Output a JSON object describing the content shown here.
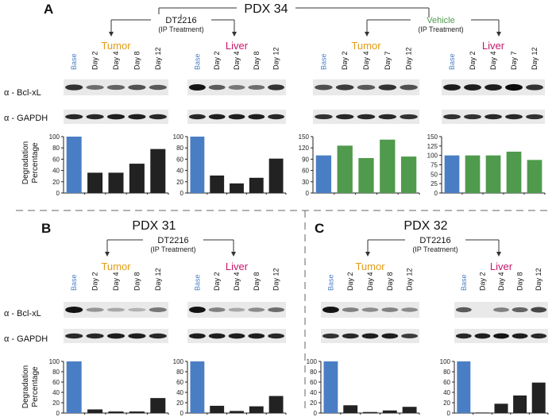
{
  "colors": {
    "base": "#4a7ec4",
    "dt2216": "#222222",
    "vehicle": "#4f9a4c",
    "tumor_label": "#e39b16",
    "liver_label": "#c6166a",
    "vehicle_label": "#4f9a4c",
    "base_lane_label": "#4a7ec4"
  },
  "figure": {
    "row_labels": {
      "bcl": "α - Bcl-xL",
      "gapdh": "α - GAPDH",
      "ylabel_1": "Degradation",
      "ylabel_2": "Percentage"
    },
    "treatment_sub": "(IP Treatment)"
  },
  "panels": [
    {
      "letter": "A",
      "title": "PDX 34",
      "treatments": [
        {
          "name": "DT2216",
          "color_key": "dt2216"
        },
        {
          "name": "Vehicle",
          "color_key": "vehicle_label"
        }
      ]
    },
    {
      "letter": "B",
      "title": "PDX 31",
      "treatments": [
        {
          "name": "DT2216",
          "color_key": "dt2216"
        }
      ]
    },
    {
      "letter": "C",
      "title": "PDX 32",
      "treatments": [
        {
          "name": "DT2216",
          "color_key": "dt2216"
        }
      ]
    }
  ],
  "chart_data": [
    {
      "type": "bar",
      "panel": "A",
      "title": "Tumor",
      "treatment": "DT2216",
      "categories": [
        "Base",
        "Day 2",
        "Day 4",
        "Day 8",
        "Day 12"
      ],
      "values": [
        100,
        36,
        36,
        52,
        78
      ],
      "ylim": [
        0,
        100
      ],
      "yticks": [
        0,
        20,
        40,
        60,
        80,
        100
      ],
      "ylabel": "Degradation Percentage"
    },
    {
      "type": "bar",
      "panel": "A",
      "title": "Liver",
      "treatment": "DT2216",
      "categories": [
        "Base",
        "Day 2",
        "Day 4",
        "Day 8",
        "Day 12"
      ],
      "values": [
        100,
        31,
        17,
        27,
        61
      ],
      "ylim": [
        0,
        100
      ],
      "yticks": [
        0,
        20,
        40,
        60,
        80,
        100
      ]
    },
    {
      "type": "bar",
      "panel": "A",
      "title": "Tumor",
      "treatment": "Vehicle",
      "categories": [
        "Base",
        "Day 2",
        "Day 4",
        "Day 7",
        "Day 12"
      ],
      "values": [
        100,
        126,
        93,
        142,
        97
      ],
      "ylim": [
        0,
        150
      ],
      "yticks": [
        0,
        30,
        60,
        90,
        120,
        150
      ]
    },
    {
      "type": "bar",
      "panel": "A",
      "title": "Liver",
      "treatment": "Vehicle",
      "categories": [
        "Base",
        "Day 2",
        "Day 4",
        "Day 7",
        "Day 12"
      ],
      "values": [
        100,
        100,
        100,
        110,
        88
      ],
      "ylim": [
        0,
        150
      ],
      "yticks": [
        0,
        25,
        50,
        75,
        100,
        125,
        150
      ]
    },
    {
      "type": "bar",
      "panel": "B",
      "title": "Tumor",
      "treatment": "DT2216",
      "categories": [
        "Base",
        "Day 2",
        "Day 4",
        "Day 8",
        "Day 12"
      ],
      "values": [
        100,
        7,
        3,
        3,
        29
      ],
      "ylim": [
        0,
        100
      ],
      "yticks": [
        0,
        20,
        40,
        60,
        80,
        100
      ],
      "ylabel": "Degradation Percentage"
    },
    {
      "type": "bar",
      "panel": "B",
      "title": "Liver",
      "treatment": "DT2216",
      "categories": [
        "Base",
        "Day 2",
        "Day 4",
        "Day 8",
        "Day 12"
      ],
      "values": [
        100,
        14,
        4,
        13,
        33
      ],
      "ylim": [
        0,
        100
      ],
      "yticks": [
        0,
        20,
        40,
        60,
        80,
        100
      ]
    },
    {
      "type": "bar",
      "panel": "C",
      "title": "Tumor",
      "treatment": "DT2216",
      "categories": [
        "Base",
        "Day 2",
        "Day 4",
        "Day 8",
        "Day 12"
      ],
      "values": [
        100,
        15,
        2,
        5,
        12
      ],
      "ylim": [
        0,
        100
      ],
      "yticks": [
        0,
        20,
        40,
        60,
        80,
        100
      ]
    },
    {
      "type": "bar",
      "panel": "C",
      "title": "Liver",
      "treatment": "DT2216",
      "categories": [
        "Base",
        "Day 2",
        "Day 4",
        "Day 8",
        "Day 12"
      ],
      "values": [
        100,
        1,
        18,
        34,
        59
      ],
      "ylim": [
        0,
        100
      ],
      "yticks": [
        0,
        20,
        40,
        60,
        80,
        100
      ]
    }
  ]
}
